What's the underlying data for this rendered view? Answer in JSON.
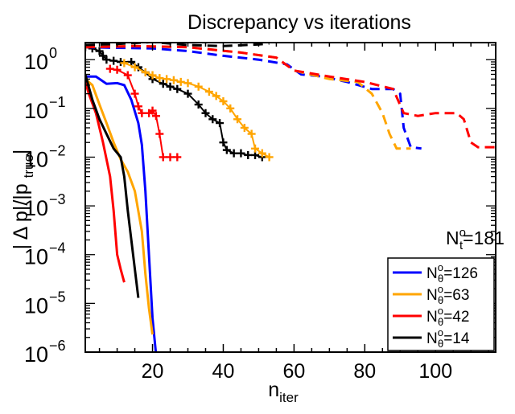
{
  "chart_data": {
    "type": "line",
    "title": "Discrepancy vs iterations",
    "xlabel": {
      "main": "n",
      "sub": "iter"
    },
    "ylabel": {
      "pre": "| Δ p|/|p ",
      "sub": "true",
      "post": "|"
    },
    "xlim": [
      1,
      117
    ],
    "ylim_log10": [
      -6,
      0.35
    ],
    "x_ticks": [
      20,
      40,
      60,
      80,
      100
    ],
    "x_tick_labels": [
      "20",
      "40",
      "60",
      "80",
      "100"
    ],
    "y_ticks": [
      0,
      -1,
      -2,
      -3,
      -4,
      -5,
      -6
    ],
    "y_tick_labels": [
      {
        "base": "10",
        "exp": "0"
      },
      {
        "base": "10",
        "exp": "−1"
      },
      {
        "base": "10",
        "exp": "−2"
      },
      {
        "base": "10",
        "exp": "−3"
      },
      {
        "base": "10",
        "exp": "−4"
      },
      {
        "base": "10",
        "exp": "−5"
      },
      {
        "base": "10",
        "exp": "−6"
      }
    ],
    "annotation": {
      "main": "N",
      "sub": "t",
      "sup": "o",
      "rest": "=181"
    },
    "legend": {
      "position": "bottom-right",
      "entries": [
        {
          "label_main": "N",
          "label_sub": "θ",
          "label_sup": "o",
          "label_rest": "=126",
          "color": "#0000ff"
        },
        {
          "label_main": "N",
          "label_sub": "θ",
          "label_sup": "o",
          "label_rest": "=63",
          "color": "#ffa500"
        },
        {
          "label_main": "N",
          "label_sub": "θ",
          "label_sup": "o",
          "label_rest": "=42",
          "color": "#ff0000"
        },
        {
          "label_main": "N",
          "label_sub": "θ",
          "label_sup": "o",
          "label_rest": "=14",
          "color": "#000000"
        }
      ]
    },
    "series": [
      {
        "name": "N_θ=126 solid",
        "color": "#0000ff",
        "style": "solid",
        "markers": false,
        "points": [
          [
            1,
            0.45
          ],
          [
            4,
            0.45
          ],
          [
            7,
            0.32
          ],
          [
            10,
            0.33
          ],
          [
            12,
            0.3
          ],
          [
            14,
            0.15
          ],
          [
            16,
            0.05
          ],
          [
            17,
            0.018
          ],
          [
            18,
            0.002
          ],
          [
            19,
            0.0001
          ],
          [
            20,
            5e-06
          ],
          [
            21,
            9e-07
          ]
        ]
      },
      {
        "name": "N_θ=63 solid",
        "color": "#ffa500",
        "style": "solid",
        "markers": false,
        "points": [
          [
            1,
            0.4
          ],
          [
            3,
            0.3
          ],
          [
            5,
            0.12
          ],
          [
            7,
            0.05
          ],
          [
            9,
            0.02
          ],
          [
            11,
            0.009
          ],
          [
            13,
            0.005
          ],
          [
            15,
            0.002
          ],
          [
            17,
            0.0003
          ],
          [
            18,
            4e-05
          ],
          [
            19,
            8e-06
          ],
          [
            20,
            2.3e-06
          ]
        ]
      },
      {
        "name": "N_θ=42 solid",
        "color": "#ff0000",
        "style": "solid",
        "markers": false,
        "points": [
          [
            1,
            0.35
          ],
          [
            2,
            0.2
          ],
          [
            4,
            0.08
          ],
          [
            6,
            0.02
          ],
          [
            8,
            0.004
          ],
          [
            9,
            0.0008
          ],
          [
            10,
            0.0001
          ],
          [
            11,
            5e-05
          ],
          [
            12,
            2.7e-05
          ]
        ]
      },
      {
        "name": "N_θ=14 solid",
        "color": "#000000",
        "style": "solid",
        "markers": false,
        "points": [
          [
            1,
            0.5
          ],
          [
            3,
            0.15
          ],
          [
            5,
            0.06
          ],
          [
            7,
            0.03
          ],
          [
            9,
            0.015
          ],
          [
            11,
            0.01
          ],
          [
            12,
            0.004
          ],
          [
            13,
            0.0008
          ],
          [
            14,
            0.0002
          ],
          [
            15,
            5e-05
          ],
          [
            16,
            1.3e-05
          ]
        ]
      },
      {
        "name": "N_θ=42 markers",
        "color": "#ff0000",
        "style": "solid",
        "markers": true,
        "points": [
          [
            8,
            0.65
          ],
          [
            10,
            0.62
          ],
          [
            13,
            0.48
          ],
          [
            15,
            0.2
          ],
          [
            16,
            0.11
          ],
          [
            17,
            0.08
          ],
          [
            19,
            0.08
          ],
          [
            20,
            0.09
          ],
          [
            21,
            0.07
          ],
          [
            22,
            0.03
          ],
          [
            23,
            0.01
          ],
          [
            25,
            0.01
          ],
          [
            27,
            0.01
          ]
        ]
      },
      {
        "name": "N_θ=14 markers",
        "color": "#000000",
        "style": "solid",
        "markers": true,
        "points": [
          [
            1,
            1.8
          ],
          [
            3,
            1.7
          ],
          [
            5,
            1.5
          ],
          [
            6,
            1.2
          ],
          [
            7,
            1.0
          ],
          [
            9,
            0.95
          ],
          [
            11,
            0.9
          ],
          [
            14,
            0.9
          ],
          [
            16,
            0.7
          ],
          [
            18,
            0.55
          ],
          [
            20,
            0.4
          ],
          [
            23,
            0.32
          ],
          [
            25,
            0.28
          ],
          [
            27,
            0.25
          ],
          [
            30,
            0.2
          ],
          [
            33,
            0.12
          ],
          [
            35,
            0.08
          ],
          [
            37,
            0.06
          ],
          [
            39,
            0.05
          ],
          [
            40,
            0.02
          ],
          [
            41,
            0.014
          ],
          [
            43,
            0.012
          ],
          [
            45,
            0.012
          ],
          [
            47,
            0.011
          ],
          [
            49,
            0.011
          ],
          [
            51,
            0.01
          ]
        ]
      },
      {
        "name": "N_θ=63 markers",
        "color": "#ffa500",
        "style": "solid",
        "markers": true,
        "points": [
          [
            12,
            0.85
          ],
          [
            15,
            0.7
          ],
          [
            18,
            0.55
          ],
          [
            20,
            0.48
          ],
          [
            22,
            0.42
          ],
          [
            24,
            0.4
          ],
          [
            26,
            0.38
          ],
          [
            28,
            0.35
          ],
          [
            30,
            0.33
          ],
          [
            33,
            0.28
          ],
          [
            36,
            0.22
          ],
          [
            38,
            0.18
          ],
          [
            40,
            0.14
          ],
          [
            42,
            0.1
          ],
          [
            44,
            0.06
          ],
          [
            46,
            0.04
          ],
          [
            48,
            0.03
          ],
          [
            49,
            0.015
          ],
          [
            51,
            0.012
          ],
          [
            53,
            0.01
          ]
        ]
      },
      {
        "name": "N_θ=126 dashed",
        "color": "#0000ff",
        "style": "dashed",
        "markers": false,
        "points": [
          [
            1,
            1.8
          ],
          [
            10,
            1.75
          ],
          [
            20,
            1.7
          ],
          [
            30,
            1.5
          ],
          [
            40,
            1.2
          ],
          [
            50,
            1.0
          ],
          [
            58,
            0.8
          ],
          [
            62,
            0.5
          ],
          [
            68,
            0.45
          ],
          [
            75,
            0.35
          ],
          [
            82,
            0.25
          ],
          [
            88,
            0.25
          ],
          [
            90,
            0.2
          ],
          [
            91,
            0.04
          ],
          [
            93,
            0.016
          ],
          [
            96,
            0.015
          ]
        ]
      },
      {
        "name": "N_θ=63 dashed",
        "color": "#ffa500",
        "style": "dashed",
        "markers": false,
        "points": [
          [
            1,
            1.8
          ],
          [
            15,
            1.9
          ],
          [
            30,
            1.8
          ],
          [
            45,
            1.4
          ],
          [
            55,
            1.1
          ],
          [
            60,
            0.6
          ],
          [
            70,
            0.4
          ],
          [
            78,
            0.35
          ],
          [
            82,
            0.2
          ],
          [
            85,
            0.08
          ],
          [
            87,
            0.03
          ],
          [
            89,
            0.015
          ],
          [
            93,
            0.015
          ]
        ]
      },
      {
        "name": "N_θ=42 dashed",
        "color": "#ff0000",
        "style": "dashed",
        "markers": false,
        "points": [
          [
            1,
            1.8
          ],
          [
            15,
            1.9
          ],
          [
            30,
            1.8
          ],
          [
            45,
            1.4
          ],
          [
            55,
            1.1
          ],
          [
            60,
            0.6
          ],
          [
            70,
            0.45
          ],
          [
            80,
            0.35
          ],
          [
            88,
            0.25
          ],
          [
            91,
            0.08
          ],
          [
            95,
            0.07
          ],
          [
            100,
            0.08
          ],
          [
            103,
            0.08
          ],
          [
            106,
            0.08
          ],
          [
            108,
            0.06
          ],
          [
            110,
            0.02
          ],
          [
            112,
            0.016
          ],
          [
            114,
            0.016
          ],
          [
            117,
            0.016
          ]
        ]
      },
      {
        "name": "N_θ=14 dashed",
        "color": "#000000",
        "style": "dashed",
        "markers": false,
        "points": [
          [
            1,
            2.0
          ],
          [
            10,
            2.1
          ],
          [
            20,
            2.3
          ],
          [
            30,
            2.0
          ],
          [
            40,
            1.9
          ],
          [
            50,
            2.05
          ],
          [
            53,
            2.15
          ]
        ]
      }
    ]
  }
}
